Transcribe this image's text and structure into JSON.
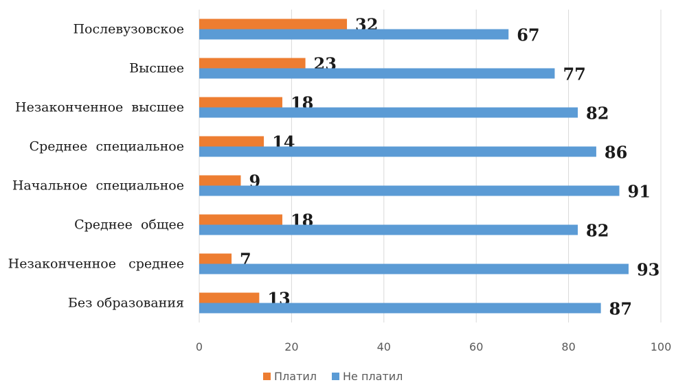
{
  "chart_data": {
    "type": "bar",
    "orientation": "horizontal",
    "categories": [
      "Послевузовское",
      "Высшее",
      "Незаконченное  высшее",
      "Среднее  специальное",
      "Начальное  специальное",
      "Среднее  общее",
      "Незаконченное   среднее",
      "Без образования"
    ],
    "series": [
      {
        "name": "Платил",
        "color": "#ed7d31",
        "values": [
          32,
          23,
          18,
          14,
          9,
          18,
          7,
          13
        ]
      },
      {
        "name": "Не платил",
        "color": "#5b9bd5",
        "values": [
          67,
          77,
          82,
          86,
          91,
          82,
          93,
          87
        ]
      }
    ],
    "xlim": [
      0,
      100
    ],
    "ticks": [
      "0",
      "20",
      "40",
      "60",
      "80",
      "100"
    ],
    "grid": "vertical",
    "legend_position": "bottom"
  }
}
